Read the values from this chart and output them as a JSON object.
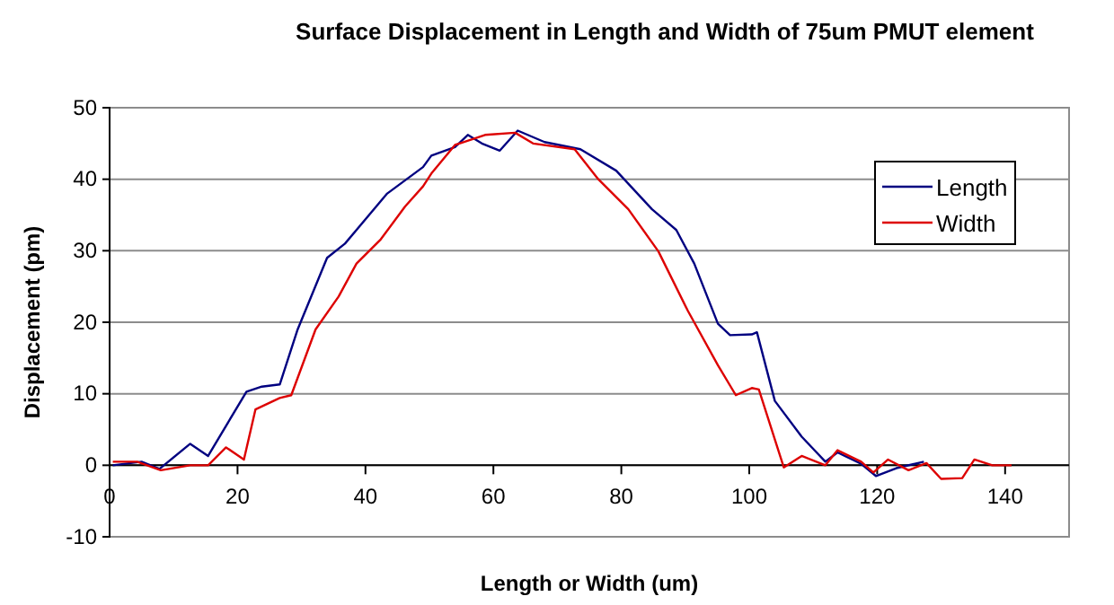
{
  "chart_data": {
    "type": "line",
    "title": "Surface Displacement in Length and Width of 75um PMUT element",
    "xlabel": "Length or Width (um)",
    "ylabel": "Displacement (pm)",
    "xlim": [
      0,
      150
    ],
    "xticks": [
      0,
      20,
      40,
      60,
      80,
      100,
      120,
      140
    ],
    "ylim": [
      -10,
      50
    ],
    "yticks": [
      -10,
      0,
      10,
      20,
      30,
      40,
      50
    ],
    "grid": "y",
    "legend": "top right",
    "marker": "none",
    "line_style": "solid",
    "series": [
      {
        "name": "Length",
        "color": "#000080",
        "x": [
          0.5,
          5,
          7.8,
          12.6,
          15.4,
          21.4,
          23.8,
          26.6,
          29.4,
          34,
          36.8,
          43.4,
          49,
          50.3,
          54,
          56,
          58.2,
          61,
          63.8,
          68,
          73.6,
          79.2,
          84.8,
          88.6,
          91.4,
          95.1,
          97,
          100.4,
          101.2,
          104,
          108.2,
          111.9,
          113.8,
          117.5,
          119.8,
          123,
          127.3
        ],
        "values": [
          0,
          0.5,
          -0.5,
          3,
          1.3,
          10.3,
          11,
          11.3,
          19,
          29,
          31,
          38,
          41.7,
          43.3,
          44.5,
          46.2,
          45,
          44,
          46.8,
          45.2,
          44.2,
          41.2,
          35.8,
          32.9,
          28.2,
          19.8,
          18.2,
          18.3,
          18.6,
          9,
          4,
          0.5,
          1.8,
          0.2,
          -1.5,
          -0.4,
          0.5
        ]
      },
      {
        "name": "Width",
        "color": "#dd0000",
        "x": [
          0.5,
          4.3,
          8,
          12.6,
          15.4,
          18.2,
          21,
          22.8,
          26.6,
          28.4,
          32.2,
          35.8,
          38.6,
          42.4,
          46.2,
          49,
          50.3,
          54,
          58.7,
          63.4,
          66.2,
          72.7,
          76.4,
          81.1,
          85.8,
          90.4,
          95.1,
          97.9,
          100.4,
          101.5,
          105.4,
          108.2,
          111.9,
          113.8,
          117.5,
          119.4,
          121.7,
          124.9,
          127.7,
          130,
          133.3,
          135.2,
          138,
          141
        ],
        "values": [
          0.5,
          0.5,
          -0.7,
          0,
          0,
          2.5,
          0.8,
          7.8,
          9.4,
          9.8,
          19,
          23.6,
          28.2,
          31.6,
          36.2,
          39,
          40.8,
          44.8,
          46.2,
          46.5,
          45,
          44.2,
          40,
          35.8,
          29.9,
          21.6,
          14,
          9.8,
          10.8,
          10.6,
          -0.3,
          1.3,
          0,
          2.1,
          0.5,
          -1,
          0.8,
          -0.7,
          0.3,
          -1.9,
          -1.8,
          0.8,
          0,
          0
        ]
      }
    ]
  }
}
